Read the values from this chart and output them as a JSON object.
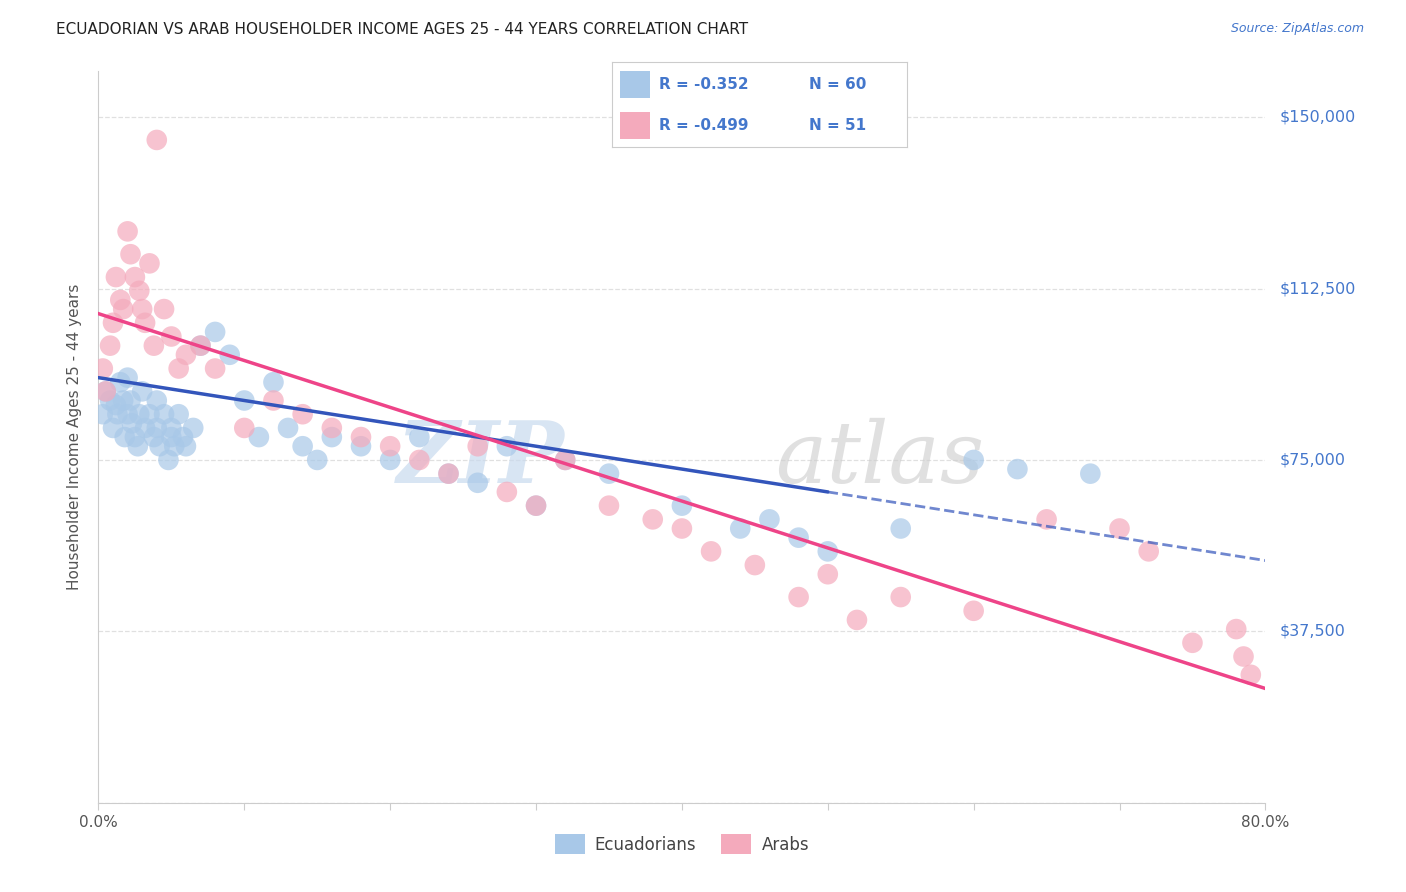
{
  "title": "ECUADORIAN VS ARAB HOUSEHOLDER INCOME AGES 25 - 44 YEARS CORRELATION CHART",
  "source": "Source: ZipAtlas.com",
  "ylabel": "Householder Income Ages 25 - 44 years",
  "ytick_labels": [
    "",
    "$37,500",
    "$75,000",
    "$112,500",
    "$150,000"
  ],
  "ytick_values": [
    0,
    37500,
    75000,
    112500,
    150000
  ],
  "xlim": [
    0,
    80
  ],
  "ylim": [
    0,
    160000
  ],
  "watermark_zip": "ZIP",
  "watermark_atlas": "atlas",
  "legend_r1": "-0.352",
  "legend_n1": "60",
  "legend_r2": "-0.499",
  "legend_n2": "51",
  "blue_scatter_color": "#A8C8E8",
  "pink_scatter_color": "#F4AABC",
  "blue_line_color": "#3355BB",
  "pink_line_color": "#EE4488",
  "title_color": "#222222",
  "source_color": "#4477CC",
  "axis_label_color": "#555555",
  "right_tick_color": "#4477CC",
  "legend_text_color": "#4477CC",
  "grid_color": "#DDDDDD",
  "ecu_solid_end": 50,
  "blue_intercept": 93000,
  "blue_slope": -500,
  "pink_intercept": 107000,
  "pink_slope": -1025,
  "ecuadorian_x": [
    0.3,
    0.5,
    0.8,
    1.0,
    1.2,
    1.3,
    1.5,
    1.7,
    1.8,
    2.0,
    2.0,
    2.2,
    2.3,
    2.5,
    2.7,
    2.8,
    3.0,
    3.2,
    3.5,
    3.8,
    4.0,
    4.0,
    4.2,
    4.5,
    4.8,
    5.0,
    5.0,
    5.2,
    5.5,
    5.8,
    6.0,
    6.5,
    7.0,
    8.0,
    9.0,
    10.0,
    11.0,
    12.0,
    13.0,
    14.0,
    15.0,
    16.0,
    18.0,
    20.0,
    22.0,
    24.0,
    26.0,
    28.0,
    30.0,
    32.0,
    35.0,
    40.0,
    44.0,
    46.0,
    48.0,
    50.0,
    55.0,
    60.0,
    63.0,
    68.0
  ],
  "ecuadorian_y": [
    85000,
    90000,
    88000,
    82000,
    87000,
    85000,
    92000,
    88000,
    80000,
    93000,
    85000,
    88000,
    83000,
    80000,
    78000,
    85000,
    90000,
    82000,
    85000,
    80000,
    88000,
    82000,
    78000,
    85000,
    75000,
    82000,
    80000,
    78000,
    85000,
    80000,
    78000,
    82000,
    100000,
    103000,
    98000,
    88000,
    80000,
    92000,
    82000,
    78000,
    75000,
    80000,
    78000,
    75000,
    80000,
    72000,
    70000,
    78000,
    65000,
    75000,
    72000,
    65000,
    60000,
    62000,
    58000,
    55000,
    60000,
    75000,
    73000,
    72000
  ],
  "arab_x": [
    0.3,
    0.5,
    0.8,
    1.0,
    1.2,
    1.5,
    1.7,
    2.0,
    2.2,
    2.5,
    2.8,
    3.0,
    3.2,
    3.5,
    3.8,
    4.0,
    4.5,
    5.0,
    5.5,
    6.0,
    7.0,
    8.0,
    10.0,
    12.0,
    14.0,
    16.0,
    18.0,
    20.0,
    22.0,
    24.0,
    26.0,
    28.0,
    30.0,
    32.0,
    35.0,
    38.0,
    40.0,
    42.0,
    45.0,
    48.0,
    50.0,
    52.0,
    55.0,
    60.0,
    65.0,
    70.0,
    72.0,
    75.0,
    78.0,
    78.5,
    79.0
  ],
  "arab_y": [
    95000,
    90000,
    100000,
    105000,
    115000,
    110000,
    108000,
    125000,
    120000,
    115000,
    112000,
    108000,
    105000,
    118000,
    100000,
    145000,
    108000,
    102000,
    95000,
    98000,
    100000,
    95000,
    82000,
    88000,
    85000,
    82000,
    80000,
    78000,
    75000,
    72000,
    78000,
    68000,
    65000,
    75000,
    65000,
    62000,
    60000,
    55000,
    52000,
    45000,
    50000,
    40000,
    45000,
    42000,
    62000,
    60000,
    55000,
    35000,
    38000,
    32000,
    28000
  ]
}
